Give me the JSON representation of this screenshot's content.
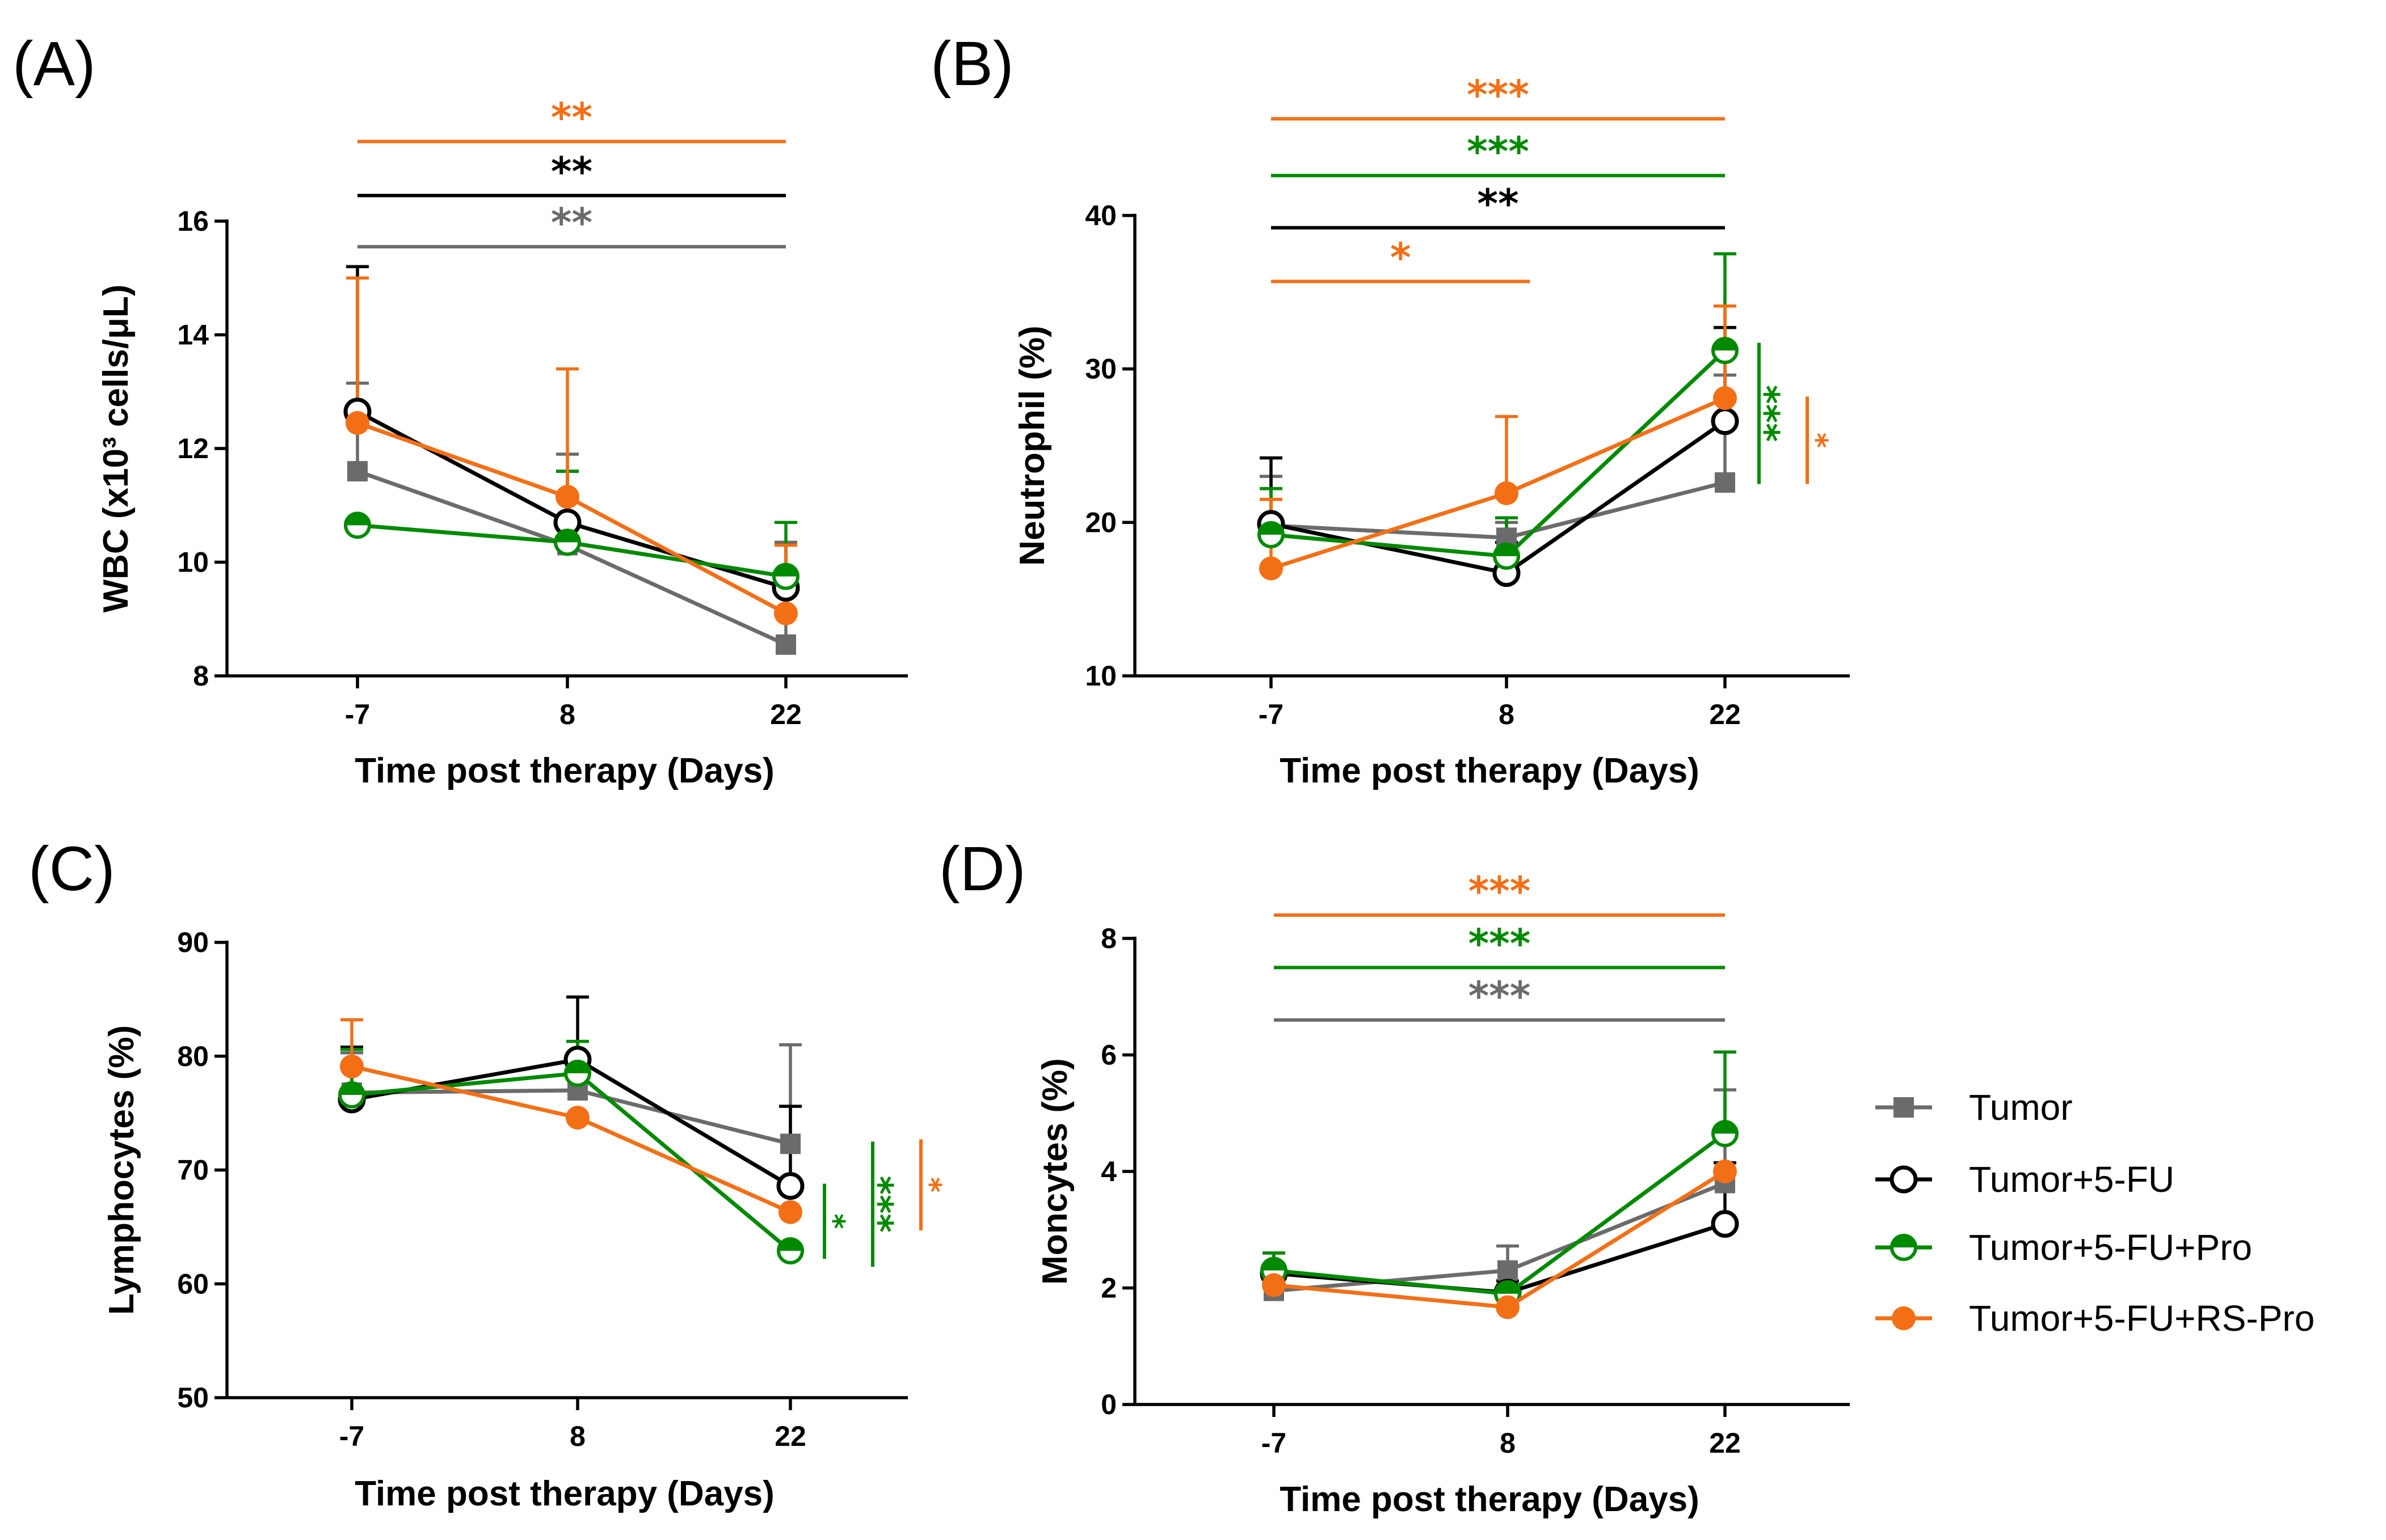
{
  "colors": {
    "Tumor": "#6b6b6b",
    "Tumor+5-FU": "#000000",
    "Tumor+5-FU+Pro": "#008a00",
    "Tumor+5-FU+RS-Pro": "#f36f16"
  },
  "legend": {
    "items": [
      {
        "name": "Tumor",
        "marker": "square"
      },
      {
        "name": "Tumor+5-FU",
        "marker": "open-circle"
      },
      {
        "name": "Tumor+5-FU+Pro",
        "marker": "half-circle"
      },
      {
        "name": "Tumor+5-FU+RS-Pro",
        "marker": "filled-circle"
      }
    ]
  },
  "chart_data": [
    {
      "panel": "(A)",
      "type": "line",
      "ylabel": "WBC  (x10³ cells/μL)",
      "xlabel": "Time post therapy (Days)",
      "categories": [
        "-7",
        "8",
        "22"
      ],
      "ylim": [
        8,
        16
      ],
      "yticks": [
        8,
        10,
        12,
        14,
        16
      ],
      "series": [
        {
          "name": "Tumor",
          "values": [
            11.6,
            10.3,
            8.55
          ],
          "err": [
            1.55,
            1.6,
            1.8
          ]
        },
        {
          "name": "Tumor+5-FU",
          "values": [
            12.65,
            10.7,
            9.55
          ],
          "err": [
            2.55,
            0.9,
            0.75
          ]
        },
        {
          "name": "Tumor+5-FU+Pro",
          "values": [
            10.65,
            10.35,
            9.75
          ],
          "err": [
            0.0,
            1.25,
            0.95
          ]
        },
        {
          "name": "Tumor+5-FU+RS-Pro",
          "values": [
            12.45,
            11.15,
            9.1
          ],
          "err": [
            2.55,
            2.25,
            1.2
          ]
        }
      ],
      "sig": {
        "horizontal": [
          {
            "color": "Tumor+5-FU+RS-Pro",
            "text": "**",
            "y": 17.4,
            "from": 0,
            "to": 2
          },
          {
            "color": "Tumor+5-FU",
            "text": "**",
            "y": 16.45,
            "from": 0,
            "to": 2
          },
          {
            "color": "Tumor",
            "text": "**",
            "y": 15.55,
            "from": 0,
            "to": 2
          }
        ],
        "vertical": []
      }
    },
    {
      "panel": "(B)",
      "type": "line",
      "ylabel": "Neutrophil (%)",
      "xlabel": "Time post therapy (Days)",
      "categories": [
        "-7",
        "8",
        "22"
      ],
      "ylim": [
        10,
        40
      ],
      "yticks": [
        10,
        20,
        30,
        40
      ],
      "series": [
        {
          "name": "Tumor",
          "values": [
            19.8,
            19.0,
            22.6
          ],
          "err": [
            3.2,
            1.0,
            7.0
          ]
        },
        {
          "name": "Tumor+5-FU",
          "values": [
            19.9,
            16.7,
            26.6
          ],
          "err": [
            4.3,
            2.0,
            6.1
          ]
        },
        {
          "name": "Tumor+5-FU+Pro",
          "values": [
            19.2,
            17.8,
            31.2
          ],
          "err": [
            3.0,
            2.5,
            6.3
          ]
        },
        {
          "name": "Tumor+5-FU+RS-Pro",
          "values": [
            17.0,
            21.9,
            28.1
          ],
          "err": [
            4.5,
            5.0,
            6.0
          ]
        }
      ],
      "sig": {
        "horizontal": [
          {
            "color": "Tumor+5-FU+RS-Pro",
            "text": "***",
            "y": 46.3,
            "from": 0,
            "to": 2
          },
          {
            "color": "Tumor+5-FU+Pro",
            "text": "***",
            "y": 42.6,
            "from": 0,
            "to": 2
          },
          {
            "color": "Tumor+5-FU",
            "text": "**",
            "y": 39.2,
            "from": 0,
            "to": 2
          },
          {
            "color": "Tumor+5-FU+RS-Pro",
            "text": "*",
            "y": 35.7,
            "from": 0,
            "to": 1.1
          }
        ],
        "vertical": [
          {
            "color": "Tumor+5-FU+Pro",
            "text": "***",
            "y1": 22.5,
            "y2": 31.7
          },
          {
            "color": "Tumor+5-FU+RS-Pro",
            "text": "*",
            "y1": 22.5,
            "y2": 28.2
          }
        ]
      }
    },
    {
      "panel": "(C)",
      "type": "line",
      "ylabel": "Lymphocytes (%)",
      "xlabel": "Time post therapy (Days)",
      "categories": [
        "-7",
        "8",
        "22"
      ],
      "ylim": [
        50,
        90
      ],
      "yticks": [
        50,
        60,
        70,
        80,
        90
      ],
      "series": [
        {
          "name": "Tumor",
          "values": [
            76.8,
            77.0,
            72.3
          ],
          "err": [
            3.5,
            2.5,
            8.7
          ]
        },
        {
          "name": "Tumor+5-FU",
          "values": [
            76.2,
            79.7,
            68.6
          ],
          "err": [
            4.6,
            5.5,
            7.0
          ]
        },
        {
          "name": "Tumor+5-FU+Pro",
          "values": [
            76.6,
            78.5,
            62.9
          ],
          "err": [
            4.0,
            2.8,
            0.0
          ]
        },
        {
          "name": "Tumor+5-FU+RS-Pro",
          "values": [
            79.1,
            74.6,
            66.3
          ],
          "err": [
            4.1,
            0.0,
            0.0
          ]
        }
      ],
      "sig": {
        "horizontal": [],
        "vertical": [
          {
            "color": "Tumor+5-FU+Pro",
            "text": "*",
            "y1": 62.2,
            "y2": 68.8
          },
          {
            "color": "Tumor+5-FU+Pro",
            "text": "***",
            "y1": 61.5,
            "y2": 72.5
          },
          {
            "color": "Tumor+5-FU+RS-Pro",
            "text": "*",
            "y1": 64.7,
            "y2": 72.7
          }
        ]
      }
    },
    {
      "panel": "(D)",
      "type": "line",
      "ylabel": "Moncytes (%)",
      "xlabel": "Time post therapy (Days)",
      "categories": [
        "-7",
        "8",
        "22"
      ],
      "ylim": [
        0,
        8
      ],
      "yticks": [
        0,
        2,
        4,
        6,
        8
      ],
      "series": [
        {
          "name": "Tumor",
          "values": [
            1.95,
            2.3,
            3.8
          ],
          "err": [
            0.45,
            0.42,
            1.6
          ]
        },
        {
          "name": "Tumor+5-FU",
          "values": [
            2.25,
            1.92,
            3.1
          ],
          "err": [
            0.35,
            0.2,
            1.05
          ]
        },
        {
          "name": "Tumor+5-FU+Pro",
          "values": [
            2.3,
            1.9,
            4.65
          ],
          "err": [
            0.3,
            0.15,
            1.4
          ]
        },
        {
          "name": "Tumor+5-FU+RS-Pro",
          "values": [
            2.05,
            1.67,
            4.0
          ],
          "err": [
            0.3,
            0.0,
            0.0
          ]
        }
      ],
      "sig": {
        "horizontal": [
          {
            "color": "Tumor+5-FU+RS-Pro",
            "text": "***",
            "y": 8.4,
            "from": 0,
            "to": 2
          },
          {
            "color": "Tumor+5-FU+Pro",
            "text": "***",
            "y": 7.5,
            "from": 0,
            "to": 2
          },
          {
            "color": "Tumor",
            "text": "***",
            "y": 6.6,
            "from": 0,
            "to": 2
          }
        ],
        "vertical": []
      }
    }
  ]
}
